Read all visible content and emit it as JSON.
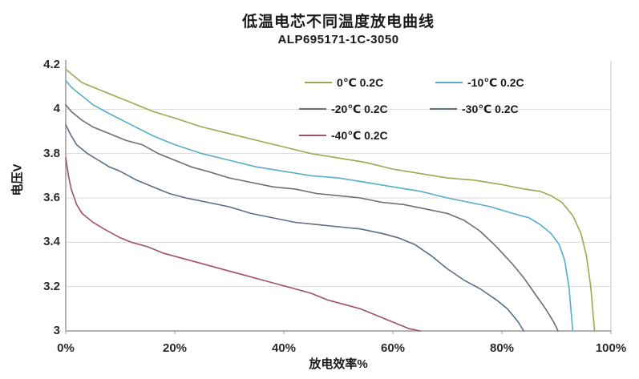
{
  "title": "低温电芯不同温度放电曲线",
  "subtitle": "ALP695171-1C-3050",
  "axes": {
    "y_title": "电压V",
    "x_title": "放电效率%",
    "y_ticks": [
      "4.2",
      "4",
      "3.8",
      "3.6",
      "3.4",
      "3.2",
      "3"
    ],
    "x_ticks": [
      "0%",
      "20%",
      "40%",
      "60%",
      "80%",
      "100%"
    ]
  },
  "colors": {
    "gridline": "#d9d9d9",
    "axis_line": "#9a9a9a",
    "right_border": "#c8c8c8",
    "background": "#ffffff",
    "text": "#1a1a1a"
  },
  "chart_data": {
    "type": "line",
    "title": "低温电芯不同温度放电曲线",
    "subtitle": "ALP695171-1C-3050",
    "xlabel": "放电效率%",
    "ylabel": "电压V",
    "xlim": [
      0,
      100
    ],
    "ylim": [
      3,
      4.2
    ],
    "y_tick_values": [
      4.2,
      4.0,
      3.8,
      3.6,
      3.4,
      3.2,
      3.0
    ],
    "x_tick_values": [
      0,
      20,
      40,
      60,
      80,
      100
    ],
    "grid": "horizontal",
    "legend_position": "inside-top-center",
    "series": [
      {
        "name": "0℃  0.2C",
        "color": "#9FA84F",
        "points": [
          [
            0,
            4.18
          ],
          [
            1,
            4.16
          ],
          [
            3,
            4.12
          ],
          [
            5,
            4.1
          ],
          [
            8,
            4.07
          ],
          [
            12,
            4.03
          ],
          [
            16,
            3.99
          ],
          [
            20,
            3.96
          ],
          [
            25,
            3.92
          ],
          [
            30,
            3.89
          ],
          [
            35,
            3.86
          ],
          [
            40,
            3.83
          ],
          [
            45,
            3.8
          ],
          [
            50,
            3.78
          ],
          [
            55,
            3.76
          ],
          [
            60,
            3.73
          ],
          [
            65,
            3.71
          ],
          [
            70,
            3.69
          ],
          [
            75,
            3.68
          ],
          [
            80,
            3.66
          ],
          [
            84,
            3.64
          ],
          [
            87,
            3.63
          ],
          [
            89,
            3.61
          ],
          [
            91,
            3.58
          ],
          [
            93,
            3.52
          ],
          [
            94.5,
            3.44
          ],
          [
            95.5,
            3.34
          ],
          [
            96.3,
            3.2
          ],
          [
            97,
            3.0
          ]
        ]
      },
      {
        "name": "-10℃  0.2C",
        "color": "#57ACCC",
        "points": [
          [
            0,
            4.13
          ],
          [
            1,
            4.1
          ],
          [
            3,
            4.06
          ],
          [
            5,
            4.02
          ],
          [
            8,
            3.98
          ],
          [
            12,
            3.93
          ],
          [
            16,
            3.88
          ],
          [
            20,
            3.84
          ],
          [
            25,
            3.8
          ],
          [
            30,
            3.77
          ],
          [
            35,
            3.74
          ],
          [
            40,
            3.72
          ],
          [
            45,
            3.7
          ],
          [
            50,
            3.69
          ],
          [
            55,
            3.67
          ],
          [
            60,
            3.65
          ],
          [
            65,
            3.63
          ],
          [
            70,
            3.6
          ],
          [
            74,
            3.58
          ],
          [
            78,
            3.56
          ],
          [
            82,
            3.53
          ],
          [
            85,
            3.51
          ],
          [
            87,
            3.48
          ],
          [
            89,
            3.44
          ],
          [
            90.5,
            3.39
          ],
          [
            91.5,
            3.32
          ],
          [
            92.3,
            3.2
          ],
          [
            93,
            3.0
          ]
        ]
      },
      {
        "name": "-20℃  0.2C",
        "color": "#6E6E6E",
        "points": [
          [
            0,
            4.02
          ],
          [
            1,
            3.99
          ],
          [
            3,
            3.95
          ],
          [
            5,
            3.92
          ],
          [
            8,
            3.89
          ],
          [
            11,
            3.86
          ],
          [
            14,
            3.84
          ],
          [
            17,
            3.8
          ],
          [
            20,
            3.77
          ],
          [
            23,
            3.74
          ],
          [
            26,
            3.72
          ],
          [
            30,
            3.69
          ],
          [
            34,
            3.67
          ],
          [
            38,
            3.65
          ],
          [
            42,
            3.64
          ],
          [
            46,
            3.62
          ],
          [
            50,
            3.61
          ],
          [
            54,
            3.6
          ],
          [
            58,
            3.58
          ],
          [
            62,
            3.57
          ],
          [
            66,
            3.55
          ],
          [
            70,
            3.53
          ],
          [
            73,
            3.5
          ],
          [
            76,
            3.45
          ],
          [
            79,
            3.38
          ],
          [
            82,
            3.3
          ],
          [
            84,
            3.24
          ],
          [
            86,
            3.17
          ],
          [
            88,
            3.1
          ],
          [
            89.5,
            3.04
          ],
          [
            90.3,
            3.0
          ]
        ]
      },
      {
        "name": "-30℃  0.2C",
        "color": "#5A6E87",
        "points": [
          [
            0,
            3.93
          ],
          [
            1,
            3.88
          ],
          [
            2,
            3.84
          ],
          [
            4,
            3.8
          ],
          [
            6,
            3.77
          ],
          [
            8,
            3.74
          ],
          [
            10,
            3.72
          ],
          [
            13,
            3.68
          ],
          [
            16,
            3.65
          ],
          [
            19,
            3.62
          ],
          [
            22,
            3.6
          ],
          [
            26,
            3.58
          ],
          [
            30,
            3.56
          ],
          [
            34,
            3.53
          ],
          [
            38,
            3.51
          ],
          [
            42,
            3.49
          ],
          [
            46,
            3.48
          ],
          [
            50,
            3.47
          ],
          [
            54,
            3.46
          ],
          [
            58,
            3.44
          ],
          [
            61,
            3.42
          ],
          [
            64,
            3.39
          ],
          [
            67,
            3.34
          ],
          [
            70,
            3.28
          ],
          [
            73,
            3.23
          ],
          [
            76,
            3.19
          ],
          [
            79,
            3.14
          ],
          [
            81,
            3.1
          ],
          [
            83,
            3.04
          ],
          [
            84,
            3.0
          ]
        ]
      },
      {
        "name": "-40℃  0.2C",
        "color": "#A0525F",
        "points": [
          [
            0,
            3.78
          ],
          [
            0.5,
            3.7
          ],
          [
            1,
            3.64
          ],
          [
            2,
            3.57
          ],
          [
            3,
            3.53
          ],
          [
            5,
            3.49
          ],
          [
            7,
            3.46
          ],
          [
            10,
            3.42
          ],
          [
            12,
            3.4
          ],
          [
            15,
            3.38
          ],
          [
            18,
            3.35
          ],
          [
            21,
            3.33
          ],
          [
            24,
            3.31
          ],
          [
            27,
            3.29
          ],
          [
            30,
            3.27
          ],
          [
            33,
            3.25
          ],
          [
            36,
            3.23
          ],
          [
            39,
            3.21
          ],
          [
            42,
            3.19
          ],
          [
            45,
            3.17
          ],
          [
            48,
            3.14
          ],
          [
            51,
            3.12
          ],
          [
            54,
            3.1
          ],
          [
            57,
            3.07
          ],
          [
            59,
            3.05
          ],
          [
            61,
            3.03
          ],
          [
            63,
            3.01
          ],
          [
            65,
            3.0
          ]
        ]
      }
    ]
  }
}
